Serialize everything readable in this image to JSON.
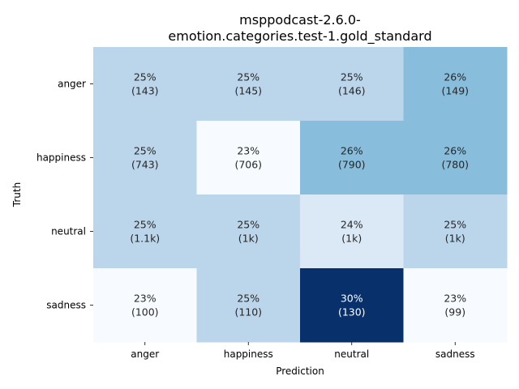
{
  "chart_data": {
    "type": "heatmap",
    "title_lines": [
      "msppodcast-2.6.0-",
      "emotion.categories.test-1.gold_standard"
    ],
    "xlabel": "Prediction",
    "ylabel": "Truth",
    "x_categories": [
      "anger",
      "happiness",
      "neutral",
      "sadness"
    ],
    "y_categories": [
      "anger",
      "happiness",
      "neutral",
      "sadness"
    ],
    "percent_values": [
      [
        25,
        25,
        25,
        26
      ],
      [
        25,
        23,
        26,
        26
      ],
      [
        25,
        25,
        24,
        25
      ],
      [
        23,
        25,
        30,
        23
      ]
    ],
    "cell_labels": [
      [
        [
          "25%",
          "(143)"
        ],
        [
          "25%",
          "(145)"
        ],
        [
          "25%",
          "(146)"
        ],
        [
          "26%",
          "(149)"
        ]
      ],
      [
        [
          "25%",
          "(743)"
        ],
        [
          "23%",
          "(706)"
        ],
        [
          "26%",
          "(790)"
        ],
        [
          "26%",
          "(780)"
        ]
      ],
      [
        [
          "25%",
          "(1.1k)"
        ],
        [
          "25%",
          "(1k)"
        ],
        [
          "24%",
          "(1k)"
        ],
        [
          "25%",
          "(1k)"
        ]
      ],
      [
        [
          "23%",
          "(100)"
        ],
        [
          "25%",
          "(110)"
        ],
        [
          "30%",
          "(130)"
        ],
        [
          "23%",
          "(99)"
        ]
      ]
    ],
    "colormap": "Blues",
    "color_stops": [
      "#f7fbff",
      "#deebf7",
      "#c6dbef",
      "#9ecae1",
      "#6baed6",
      "#4292c6",
      "#2171b5",
      "#08519c",
      "#08306b"
    ],
    "value_range": [
      23,
      30
    ],
    "grid": false,
    "legend": "none"
  }
}
